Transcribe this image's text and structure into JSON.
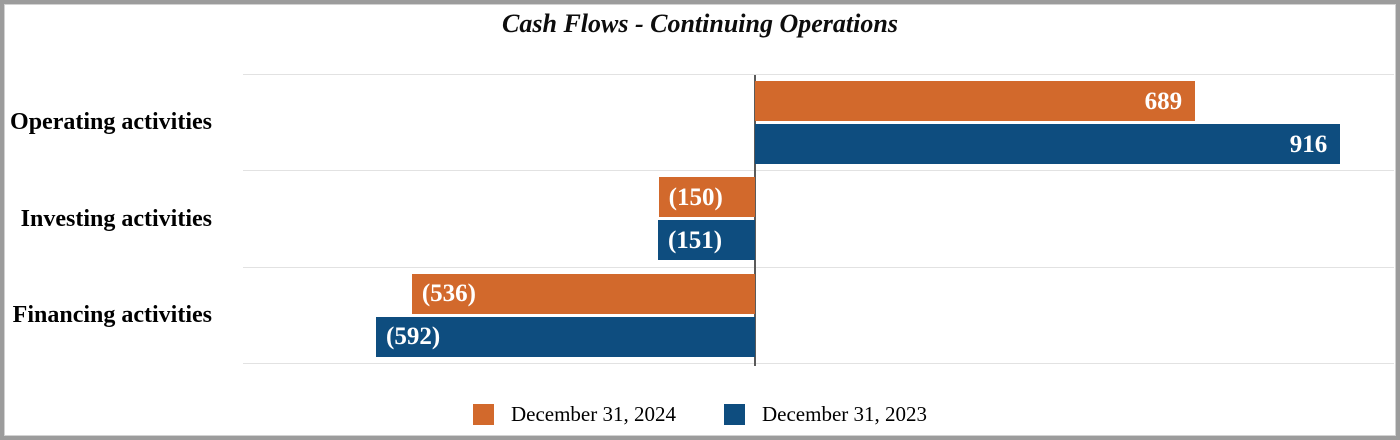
{
  "chart_data": {
    "type": "bar",
    "orientation": "horizontal",
    "title": "Cash Flows - Continuing Operations",
    "categories": [
      "Operating activities",
      "Investing activities",
      "Financing activities"
    ],
    "series": [
      {
        "name": "December 31, 2024",
        "color": "#D2692C",
        "values": [
          689,
          -150,
          -536
        ],
        "labels": [
          "689",
          "(150)",
          "(536)"
        ]
      },
      {
        "name": "December 31, 2023",
        "color": "#0E4D7F",
        "values": [
          916,
          -151,
          -592
        ],
        "labels": [
          "916",
          "(151)",
          "(592)"
        ]
      }
    ],
    "xlim": [
      -800,
      1000
    ],
    "grid": "horizontal-row-separators",
    "gridline_color": "#E2E2E2",
    "zero_line_color": "#5A5A5A",
    "value_label_color": "#FFFFFF",
    "legend_position": "bottom",
    "frame_border_color": "#9C9C9C"
  }
}
